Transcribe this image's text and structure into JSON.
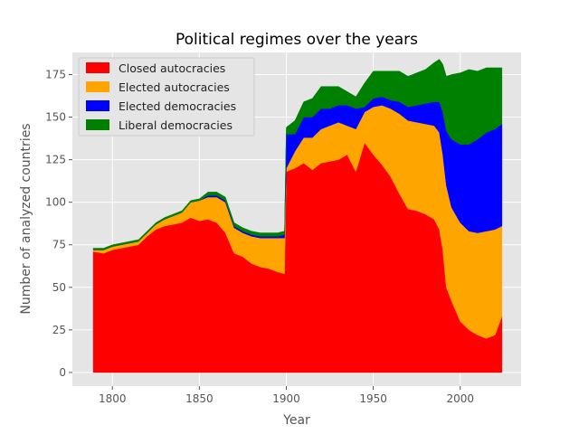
{
  "chart_data": {
    "type": "area",
    "stacked": true,
    "title": "Political regimes over the years",
    "xlabel": "Year",
    "ylabel": "Number of analyzed countries",
    "xlim": [
      1777,
      2035
    ],
    "ylim": [
      -8,
      188
    ],
    "xticks": [
      1800,
      1850,
      1900,
      1950,
      2000
    ],
    "yticks": [
      0,
      25,
      50,
      75,
      100,
      125,
      150,
      175
    ],
    "grid": true,
    "legend_position": "top-left",
    "x": [
      1789,
      1795,
      1800,
      1805,
      1810,
      1815,
      1820,
      1825,
      1830,
      1835,
      1840,
      1845,
      1850,
      1855,
      1860,
      1865,
      1870,
      1875,
      1880,
      1885,
      1890,
      1895,
      1899,
      1900,
      1905,
      1910,
      1915,
      1920,
      1925,
      1930,
      1935,
      1940,
      1945,
      1950,
      1955,
      1960,
      1965,
      1970,
      1975,
      1980,
      1985,
      1988,
      1990,
      1992,
      1995,
      2000,
      2005,
      2010,
      2015,
      2020,
      2024
    ],
    "series": [
      {
        "name": "Closed autocracies",
        "color": "#ff0000",
        "values": [
          71,
          70,
          72,
          73,
          74,
          75,
          80,
          84,
          86,
          87,
          88,
          91,
          89,
          90,
          88,
          82,
          70,
          68,
          64,
          62,
          61,
          59,
          58,
          118,
          120,
          123,
          119,
          123,
          124,
          125,
          128,
          118,
          135,
          128,
          122,
          115,
          105,
          96,
          95,
          93,
          90,
          84,
          72,
          50,
          42,
          30,
          25,
          22,
          20,
          22,
          33
        ]
      },
      {
        "name": "Elected autocracies",
        "color": "#ffa500",
        "values": [
          1,
          2,
          2,
          2,
          2,
          2,
          2,
          3,
          4,
          5,
          6,
          9,
          12,
          13,
          15,
          18,
          15,
          14,
          16,
          17,
          18,
          20,
          21,
          2,
          10,
          15,
          19,
          20,
          21,
          22,
          17,
          25,
          18,
          28,
          35,
          40,
          47,
          52,
          52,
          53,
          55,
          57,
          56,
          60,
          55,
          58,
          58,
          60,
          63,
          62,
          53
        ]
      },
      {
        "name": "Elected democracies",
        "color": "#0000ff",
        "values": [
          0,
          0,
          0,
          0,
          0,
          0,
          0,
          0,
          0,
          0,
          0,
          0,
          0,
          1,
          1,
          1,
          1,
          1,
          1,
          1,
          1,
          1,
          2,
          20,
          10,
          12,
          12,
          12,
          10,
          10,
          12,
          12,
          3,
          5,
          5,
          5,
          7,
          8,
          10,
          12,
          14,
          18,
          25,
          32,
          40,
          46,
          51,
          55,
          58,
          59,
          60
        ]
      },
      {
        "name": "Liberal democracies",
        "color": "#008000",
        "values": [
          1,
          1,
          1,
          1,
          1,
          1,
          1,
          1,
          1,
          1,
          1,
          1,
          1,
          2,
          2,
          2,
          2,
          2,
          2,
          2,
          2,
          2,
          2,
          4,
          8,
          9,
          11,
          13,
          13,
          11,
          8,
          7,
          14,
          16,
          15,
          17,
          18,
          18,
          19,
          20,
          23,
          25,
          28,
          32,
          38,
          42,
          44,
          40,
          38,
          36,
          33
        ]
      }
    ]
  }
}
